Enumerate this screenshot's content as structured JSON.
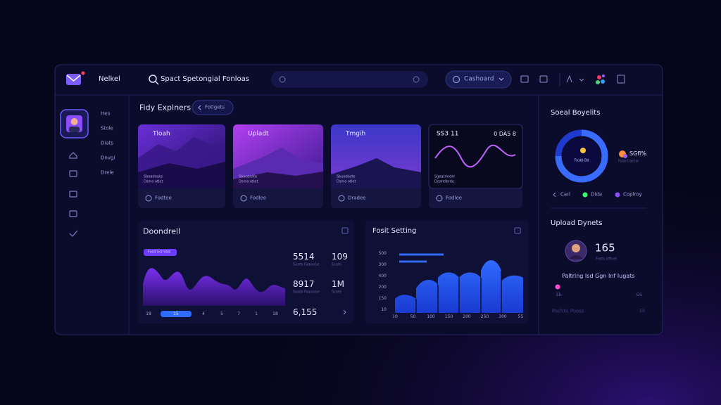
{
  "header": {
    "brand": "Nelkel",
    "search_label": "Spact Spetongial Fonloas",
    "dropdown": "Cashoard"
  },
  "nav": [
    "Hes",
    "Stole",
    "Diats",
    "Dnvgi",
    "Drele"
  ],
  "explorer": {
    "title": "Fidy Explners",
    "tab": "Fotlgets",
    "cards": [
      {
        "title": "Tloah",
        "caption": "Sboadnute",
        "subcaption": "Dsmo otlet",
        "footer": "Fodtee"
      },
      {
        "title": "Upladt",
        "caption": "Sbacdoste",
        "subcaption": "Dsmo otlet",
        "footer": "Fodlee"
      },
      {
        "title": "Tmgih",
        "caption": "Sbuodoste",
        "subcaption": "Dsmo otlet",
        "footer": "Dradee"
      },
      {
        "title": "SS3 11",
        "title_right": "0 DA5 8",
        "caption": "Sgeatrinder",
        "subcaption": "Deahtlbrde",
        "footer": "Fodlee"
      }
    ]
  },
  "downfall": {
    "title": "Doondrell",
    "chip": "Fosd Ecmlais",
    "stats": [
      "5514",
      "109",
      "8917",
      "1M",
      "6,155"
    ],
    "stat_captions": [
      "Soatb Faaoolse",
      "Scate",
      "Soatb Faaoolse",
      "Scate"
    ],
    "x_labels": [
      "18",
      "15",
      "4",
      "5",
      "7",
      "1",
      "18"
    ]
  },
  "settings": {
    "title": "Fosit Setting",
    "y_labels": [
      "500",
      "300",
      "400",
      "200",
      "150",
      "10"
    ],
    "x_labels": [
      "10",
      "50",
      "100",
      "150",
      "200",
      "250",
      "300",
      "55"
    ]
  },
  "social": {
    "title": "Soeal Boyelits",
    "donut_label": "Fosbl Bd",
    "percent": "SGfl%",
    "percent_caption": "Fosb tlactar",
    "legend": [
      "Carl",
      "Dlda",
      "Coplroy"
    ]
  },
  "uploads": {
    "title": "Upload Dynets",
    "count": "165",
    "count_caption": "Fosts officet",
    "progress_label": "Paltring Isd Ggn Inf Iugats",
    "progress_start": "Eb",
    "progress_end": "GS",
    "footer": "Pachto Pooss",
    "footer_end": "Eb"
  }
}
